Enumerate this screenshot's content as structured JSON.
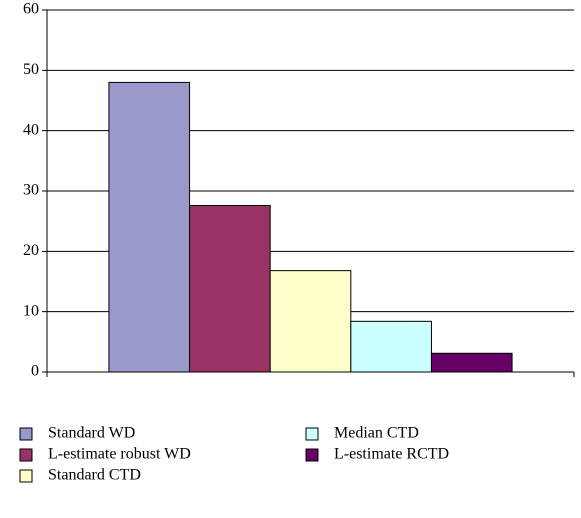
{
  "chart_data": {
    "type": "bar",
    "categories": [
      null
    ],
    "series": [
      {
        "name": "Standard WD",
        "color": "#9999cc",
        "values": [
          48
        ]
      },
      {
        "name": "L-estimate robust WD",
        "color": "#993366",
        "values": [
          27.6
        ]
      },
      {
        "name": "Standard CTD",
        "color": "#ffffcc",
        "values": [
          16.8
        ]
      },
      {
        "name": "Median CTD",
        "color": "#ccffff",
        "values": [
          8.4
        ]
      },
      {
        "name": "L-estimate RCTD",
        "color": "#660066",
        "values": [
          3.1
        ]
      }
    ],
    "ylim": [
      0,
      60
    ],
    "yticks": [
      0,
      10,
      20,
      30,
      40,
      50,
      60
    ],
    "grid": true
  }
}
